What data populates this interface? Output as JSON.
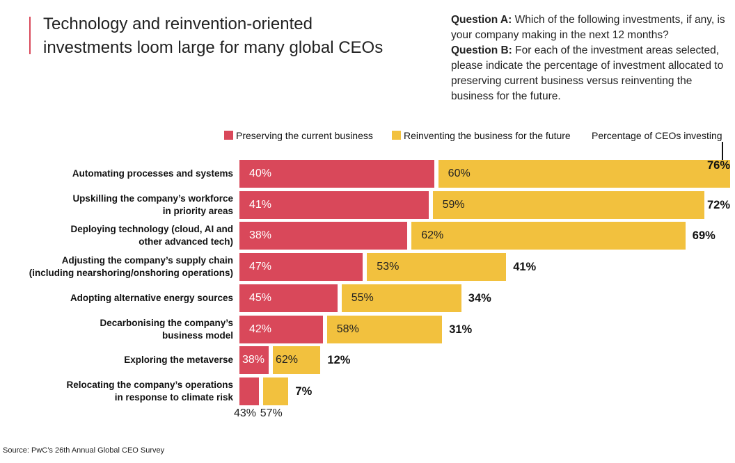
{
  "title": "Technology and reinvention-oriented investments loom large for many global CEOs",
  "question_a": {
    "label": "Question A:",
    "text": "Which of the following investments, if any, is your company making in the next 12 months?"
  },
  "question_b": {
    "label": "Question B:",
    "text": "For each of the investment areas selected, please indicate the percentage of investment allocated to preserving current business versus reinventing the business for the future."
  },
  "chart_data": {
    "type": "bar",
    "orientation": "horizontal",
    "categories": [
      "Automating processes and systems",
      "Upskilling the company’s workforce\nin priority areas",
      "Deploying technology (cloud, AI and\nother advanced tech)",
      "Adjusting the company’s supply chain\n(including nearshoring/onshoring operations)",
      "Adopting alternative energy sources",
      "Decarbonising the company’s\nbusiness model",
      "Exploring the metaverse",
      "Relocating the company’s operations\nin response to climate risk"
    ],
    "series": [
      {
        "name": "Preserving the current business",
        "color": "#d9485a",
        "values": [
          40,
          41,
          38,
          47,
          45,
          42,
          38,
          43
        ],
        "value_labels": [
          "40%",
          "41%",
          "38%",
          "47%",
          "45%",
          "42%",
          "38%",
          "43%"
        ]
      },
      {
        "name": "Reinventing the business for the future",
        "color": "#f2c13e",
        "values": [
          60,
          59,
          62,
          53,
          55,
          58,
          62,
          57
        ],
        "value_labels": [
          "60%",
          "59%",
          "62%",
          "53%",
          "55%",
          "58%",
          "62%",
          "57%"
        ]
      },
      {
        "name": "Percentage of CEOs investing",
        "values": [
          76,
          72,
          69,
          41,
          34,
          31,
          12,
          7
        ],
        "value_labels": [
          "76%",
          "72%",
          "69%",
          "41%",
          "34%",
          "31%",
          "12%",
          "7%"
        ]
      }
    ]
  },
  "source": "Source: PwC’s 26th Annual Global CEO Survey"
}
